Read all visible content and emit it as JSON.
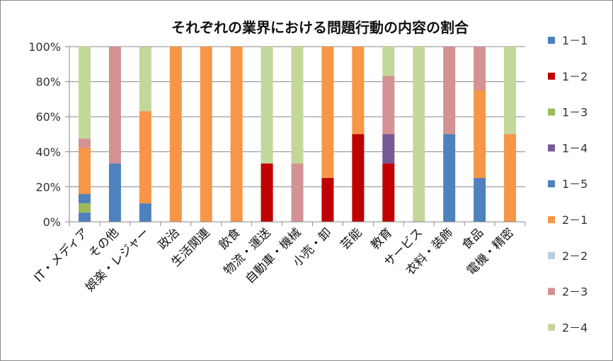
{
  "chart_data": {
    "type": "bar",
    "stacked": true,
    "title": "それぞれの業界における問題行動の内容の割合",
    "xlabel": "",
    "ylabel": "",
    "ylim": [
      0,
      100
    ],
    "yticks": [
      "0%",
      "20%",
      "40%",
      "60%",
      "80%",
      "100%"
    ],
    "grid": true,
    "legend_position": "right",
    "categories": [
      "IT・メディア",
      "その他",
      "娯楽・レジャー",
      "政治",
      "生活関連",
      "飲食",
      "物流・運送",
      "自動車・機械",
      "小売・卸",
      "芸能",
      "教育",
      "サービス",
      "衣料・装飾",
      "食品",
      "電機・精密"
    ],
    "series": [
      {
        "name": "1－1",
        "color": "#4F81BD",
        "values": [
          5.3,
          33.3,
          10.5,
          0,
          0,
          0,
          0,
          0,
          0,
          0,
          0,
          0,
          50,
          25,
          0
        ]
      },
      {
        "name": "1－2",
        "color": "#C00000",
        "values": [
          0,
          0,
          0,
          0,
          0,
          0,
          33.3,
          0,
          25,
          50,
          33.3,
          0,
          0,
          0,
          0
        ]
      },
      {
        "name": "1－3",
        "color": "#9BBB59",
        "values": [
          5.3,
          0,
          0,
          0,
          0,
          0,
          0,
          0,
          0,
          0,
          0,
          0,
          0,
          0,
          0
        ]
      },
      {
        "name": "1－4",
        "color": "#775A93",
        "values": [
          0,
          0,
          0,
          0,
          0,
          0,
          0,
          0,
          0,
          0,
          16.7,
          0,
          0,
          0,
          0
        ]
      },
      {
        "name": "1－5",
        "color": "#4F81BD",
        "values": [
          5.3,
          0,
          0,
          0,
          0,
          0,
          0,
          0,
          0,
          0,
          0,
          0,
          0,
          0,
          0
        ]
      },
      {
        "name": "2－1",
        "color": "#F79646",
        "values": [
          26.3,
          0,
          52.6,
          100,
          100,
          100,
          0,
          0,
          75,
          50,
          0,
          0,
          0,
          50,
          50
        ]
      },
      {
        "name": "2－2",
        "color": "#B9CDE5",
        "values": [
          0,
          0,
          0,
          0,
          0,
          0,
          0,
          0,
          0,
          0,
          0,
          0,
          0,
          0,
          0
        ]
      },
      {
        "name": "2－3",
        "color": "#D49292",
        "values": [
          5.3,
          66.7,
          0,
          0,
          0,
          0,
          0,
          33.3,
          0,
          0,
          33.3,
          0,
          50,
          25,
          0
        ]
      },
      {
        "name": "2－4",
        "color": "#C4D79B",
        "values": [
          52.6,
          0,
          36.8,
          0,
          0,
          0,
          66.7,
          66.7,
          0,
          0,
          16.7,
          100,
          0,
          0,
          50
        ]
      }
    ]
  }
}
